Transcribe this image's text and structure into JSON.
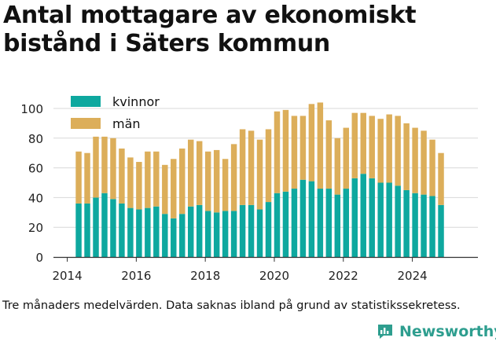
{
  "header": {
    "title": "Antal mottagare av ekonomiskt bistånd i Säters kommun"
  },
  "footer": {
    "caption": "Tre månaders medelvärden. Data saknas ibland på grund av statistikssekretess.",
    "brand": "Newsworthy"
  },
  "colors": {
    "kvinnor": "#0ea89f",
    "man": "#dcae5a",
    "brand": "#2e9e8f",
    "grid": "#d8d8d8"
  },
  "chart_data": {
    "type": "bar",
    "stacked": true,
    "title": "Antal mottagare av ekonomiskt bistånd i Säters kommun",
    "xlabel": "",
    "ylabel": "",
    "xlim": [
      2013.6,
      2025.9
    ],
    "ylim": [
      0,
      100
    ],
    "x_ticks": [
      2014,
      2016,
      2018,
      2020,
      2022,
      2024
    ],
    "y_ticks": [
      0,
      20,
      40,
      60,
      80,
      100
    ],
    "grid": true,
    "legend": "top-left",
    "x": [
      2014.33,
      2014.58,
      2014.83,
      2015.08,
      2015.33,
      2015.58,
      2015.83,
      2016.08,
      2016.33,
      2016.58,
      2016.83,
      2017.08,
      2017.33,
      2017.58,
      2017.83,
      2018.08,
      2018.33,
      2018.58,
      2018.83,
      2019.08,
      2019.33,
      2019.58,
      2019.83,
      2020.08,
      2020.33,
      2020.58,
      2020.83,
      2021.08,
      2021.33,
      2021.58,
      2021.83,
      2022.08,
      2022.33,
      2022.58,
      2022.83,
      2023.08,
      2023.33,
      2023.58,
      2023.83,
      2024.08,
      2024.33,
      2024.58,
      2024.83
    ],
    "series": [
      {
        "name": "kvinnor",
        "values": [
          36,
          36,
          40,
          43,
          39,
          36,
          33,
          32,
          33,
          34,
          29,
          26,
          29,
          34,
          35,
          31,
          30,
          31,
          31,
          35,
          35,
          32,
          37,
          43,
          44,
          46,
          52,
          51,
          46,
          46,
          42,
          46,
          53,
          56,
          53,
          50,
          50,
          48,
          45,
          43,
          42,
          41,
          35
        ]
      },
      {
        "name": "män",
        "values": [
          35,
          34,
          41,
          38,
          41,
          37,
          34,
          32,
          38,
          37,
          33,
          40,
          44,
          45,
          43,
          40,
          42,
          35,
          45,
          51,
          50,
          47,
          49,
          55,
          55,
          49,
          43,
          52,
          58,
          46,
          38,
          41,
          44,
          41,
          42,
          43,
          46,
          47,
          45,
          44,
          43,
          38,
          35
        ]
      }
    ]
  }
}
